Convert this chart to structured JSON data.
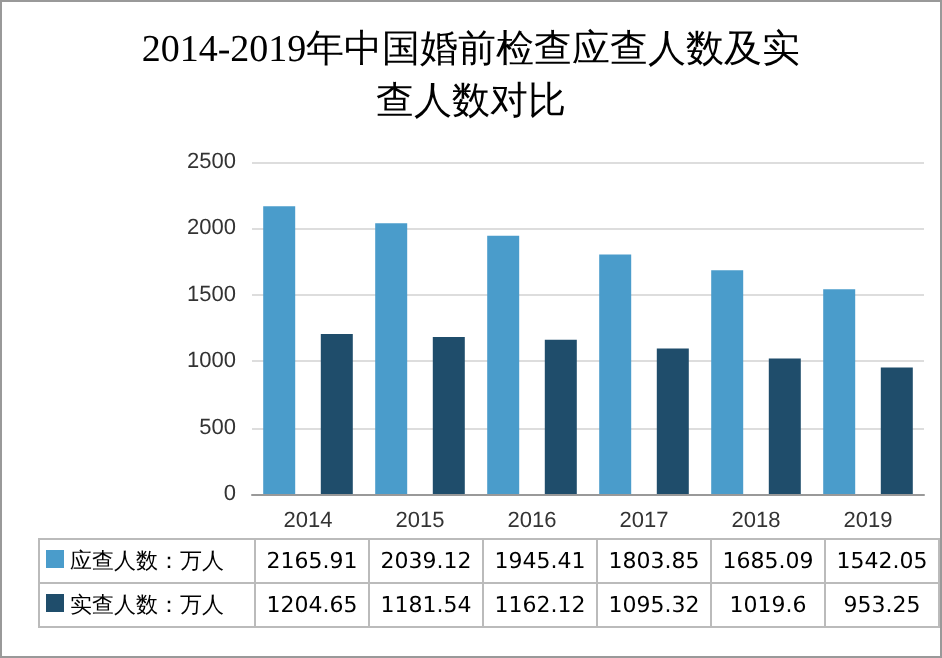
{
  "chart_data": {
    "type": "bar",
    "title": "2014-2019年中国婚前检查应查人数及实查人数对比",
    "categories": [
      "2014",
      "2015",
      "2016",
      "2017",
      "2018",
      "2019"
    ],
    "series": [
      {
        "name": "应查人数：万人",
        "color": "#4a9ccb",
        "values": [
          2165.91,
          2039.12,
          1945.41,
          1803.85,
          1685.09,
          1542.05
        ]
      },
      {
        "name": "实查人数：万人",
        "color": "#1f4d6b",
        "values": [
          1204.65,
          1181.54,
          1162.12,
          1095.32,
          1019.6,
          953.25
        ]
      }
    ],
    "ylim": [
      0,
      2500
    ],
    "yticks": [
      0,
      500,
      1000,
      1500,
      2000,
      2500
    ],
    "grid": "y",
    "legend": "bottom",
    "data_labels": true
  }
}
